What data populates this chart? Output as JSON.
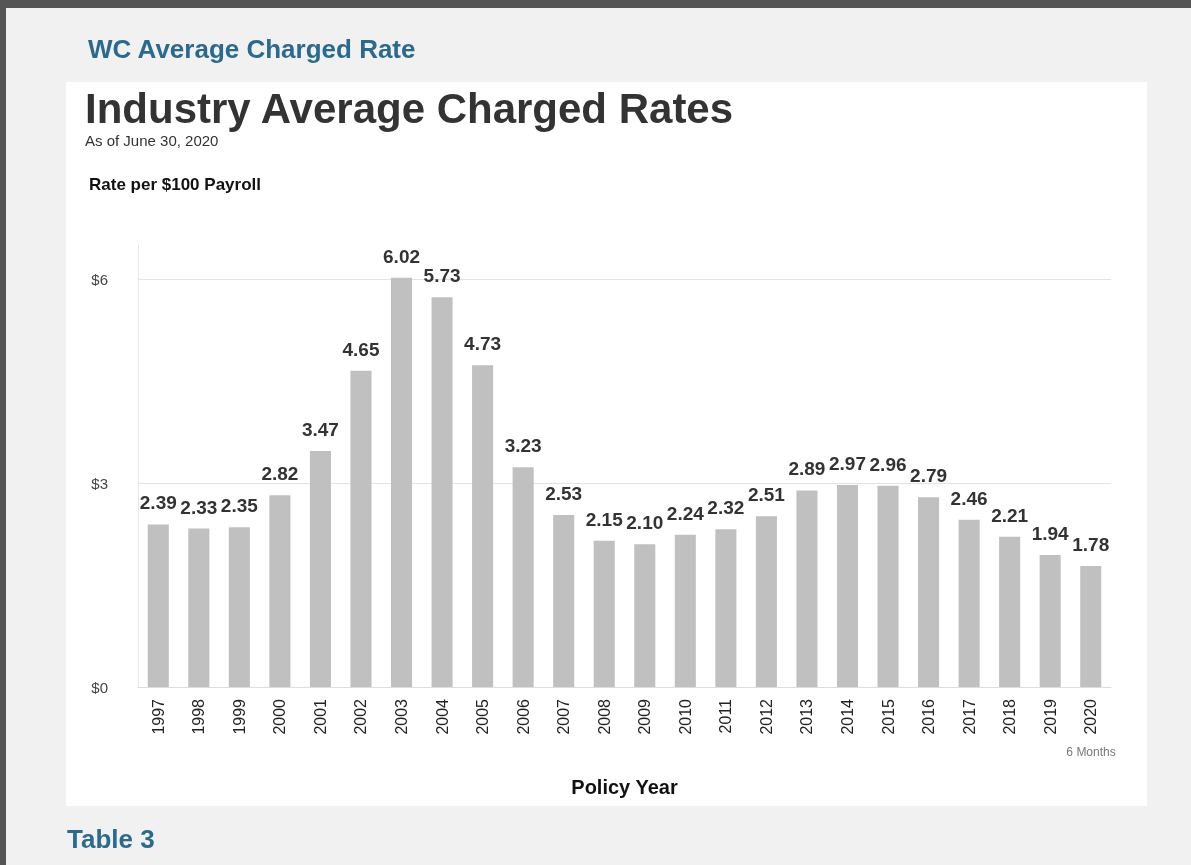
{
  "chart_data": {
    "type": "bar",
    "title": "Industry Average Charged Rates",
    "subtitle": "As of June 30, 2020",
    "ylabel": "Rate per $100 Payroll",
    "xlabel": "Policy Year",
    "annotations": [
      "WC Average Charged Rate",
      "Table 3",
      "6 Months"
    ],
    "categories": [
      "1997",
      "1998",
      "1999",
      "2000",
      "2001",
      "2002",
      "2003",
      "2004",
      "2005",
      "2006",
      "2007",
      "2008",
      "2009",
      "2010",
      "2011",
      "2012",
      "2013",
      "2014",
      "2015",
      "2016",
      "2017",
      "2018",
      "2019",
      "2020"
    ],
    "values": [
      2.39,
      2.33,
      2.35,
      2.82,
      3.47,
      4.65,
      6.02,
      5.73,
      4.73,
      3.23,
      2.53,
      2.15,
      2.1,
      2.24,
      2.32,
      2.51,
      2.89,
      2.97,
      2.96,
      2.79,
      2.46,
      2.21,
      1.94,
      1.78
    ],
    "value_labels": [
      "2.39",
      "2.33",
      "2.35",
      "2.82",
      "3.47",
      "4.65",
      "6.02",
      "5.73",
      "4.73",
      "3.23",
      "2.53",
      "2.15",
      "2.10",
      "2.24",
      "2.32",
      "2.51",
      "2.89",
      "2.97",
      "2.96",
      "2.79",
      "2.46",
      "2.21",
      "1.94",
      "1.78"
    ],
    "color": "#c0c0c1",
    "ylim": [
      0,
      6.5
    ],
    "yticks": [
      {
        "value": 0,
        "label": "$0"
      },
      {
        "value": 3,
        "label": "$3"
      },
      {
        "value": 6,
        "label": "$6"
      }
    ],
    "grid": "y"
  }
}
